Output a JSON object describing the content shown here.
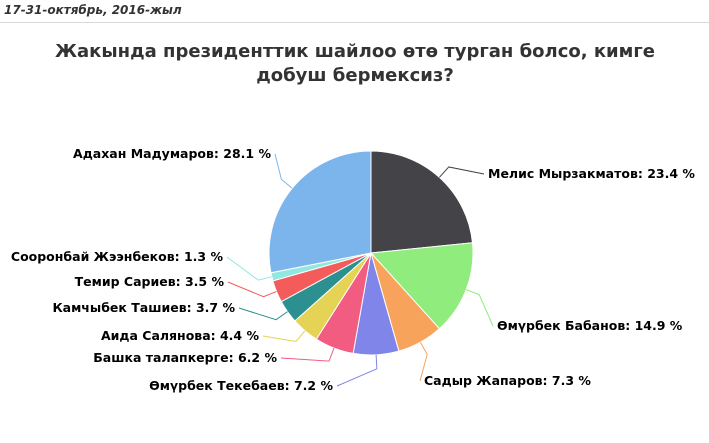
{
  "header": {
    "date_range": "17-31-октябрь, 2016-жыл"
  },
  "chart_data": {
    "type": "pie",
    "title": "Жакында президенттик шайлоо өтө турган болсо, кимге добуш бермексиз?",
    "slices": [
      {
        "name": "Мелис Мырзакматов",
        "value": 23.4,
        "label": "Мелис Мырзакматов: 23.4 %",
        "color": "#434348"
      },
      {
        "name": "Өмүрбек Бабанов",
        "value": 14.9,
        "label": "Өмүрбек Бабанов: 14.9 %",
        "color": "#90ed7d"
      },
      {
        "name": "Садыр Жапаров",
        "value": 7.3,
        "label": "Садыр Жапаров: 7.3 %",
        "color": "#f7a35c"
      },
      {
        "name": "Өмүрбек Текебаев",
        "value": 7.2,
        "label": "Өмүрбек Текебаев: 7.2 %",
        "color": "#8085e9"
      },
      {
        "name": "Башка талапкерге",
        "value": 6.2,
        "label": "Башка талапкерге: 6.2 %",
        "color": "#f15c80"
      },
      {
        "name": "Аида Салянова",
        "value": 4.4,
        "label": "Аида Салянова: 4.4 %",
        "color": "#e4d354"
      },
      {
        "name": "Камчыбек Ташиев",
        "value": 3.7,
        "label": "Камчыбек Ташиев: 3.7 %",
        "color": "#2b908f"
      },
      {
        "name": "Темир Сариев",
        "value": 3.5,
        "label": "Темир Сариев: 3.5 %",
        "color": "#f45b5b"
      },
      {
        "name": "Сооронбай Жээнбеков",
        "value": 1.3,
        "label": "Сооронбай Жээнбеков: 1.3 %",
        "color": "#91e8e1"
      },
      {
        "name": "Адахан Мадумаров",
        "value": 28.1,
        "label": "Адахан Мадумаров: 28.1 %",
        "color": "#7cb5ec"
      }
    ]
  }
}
